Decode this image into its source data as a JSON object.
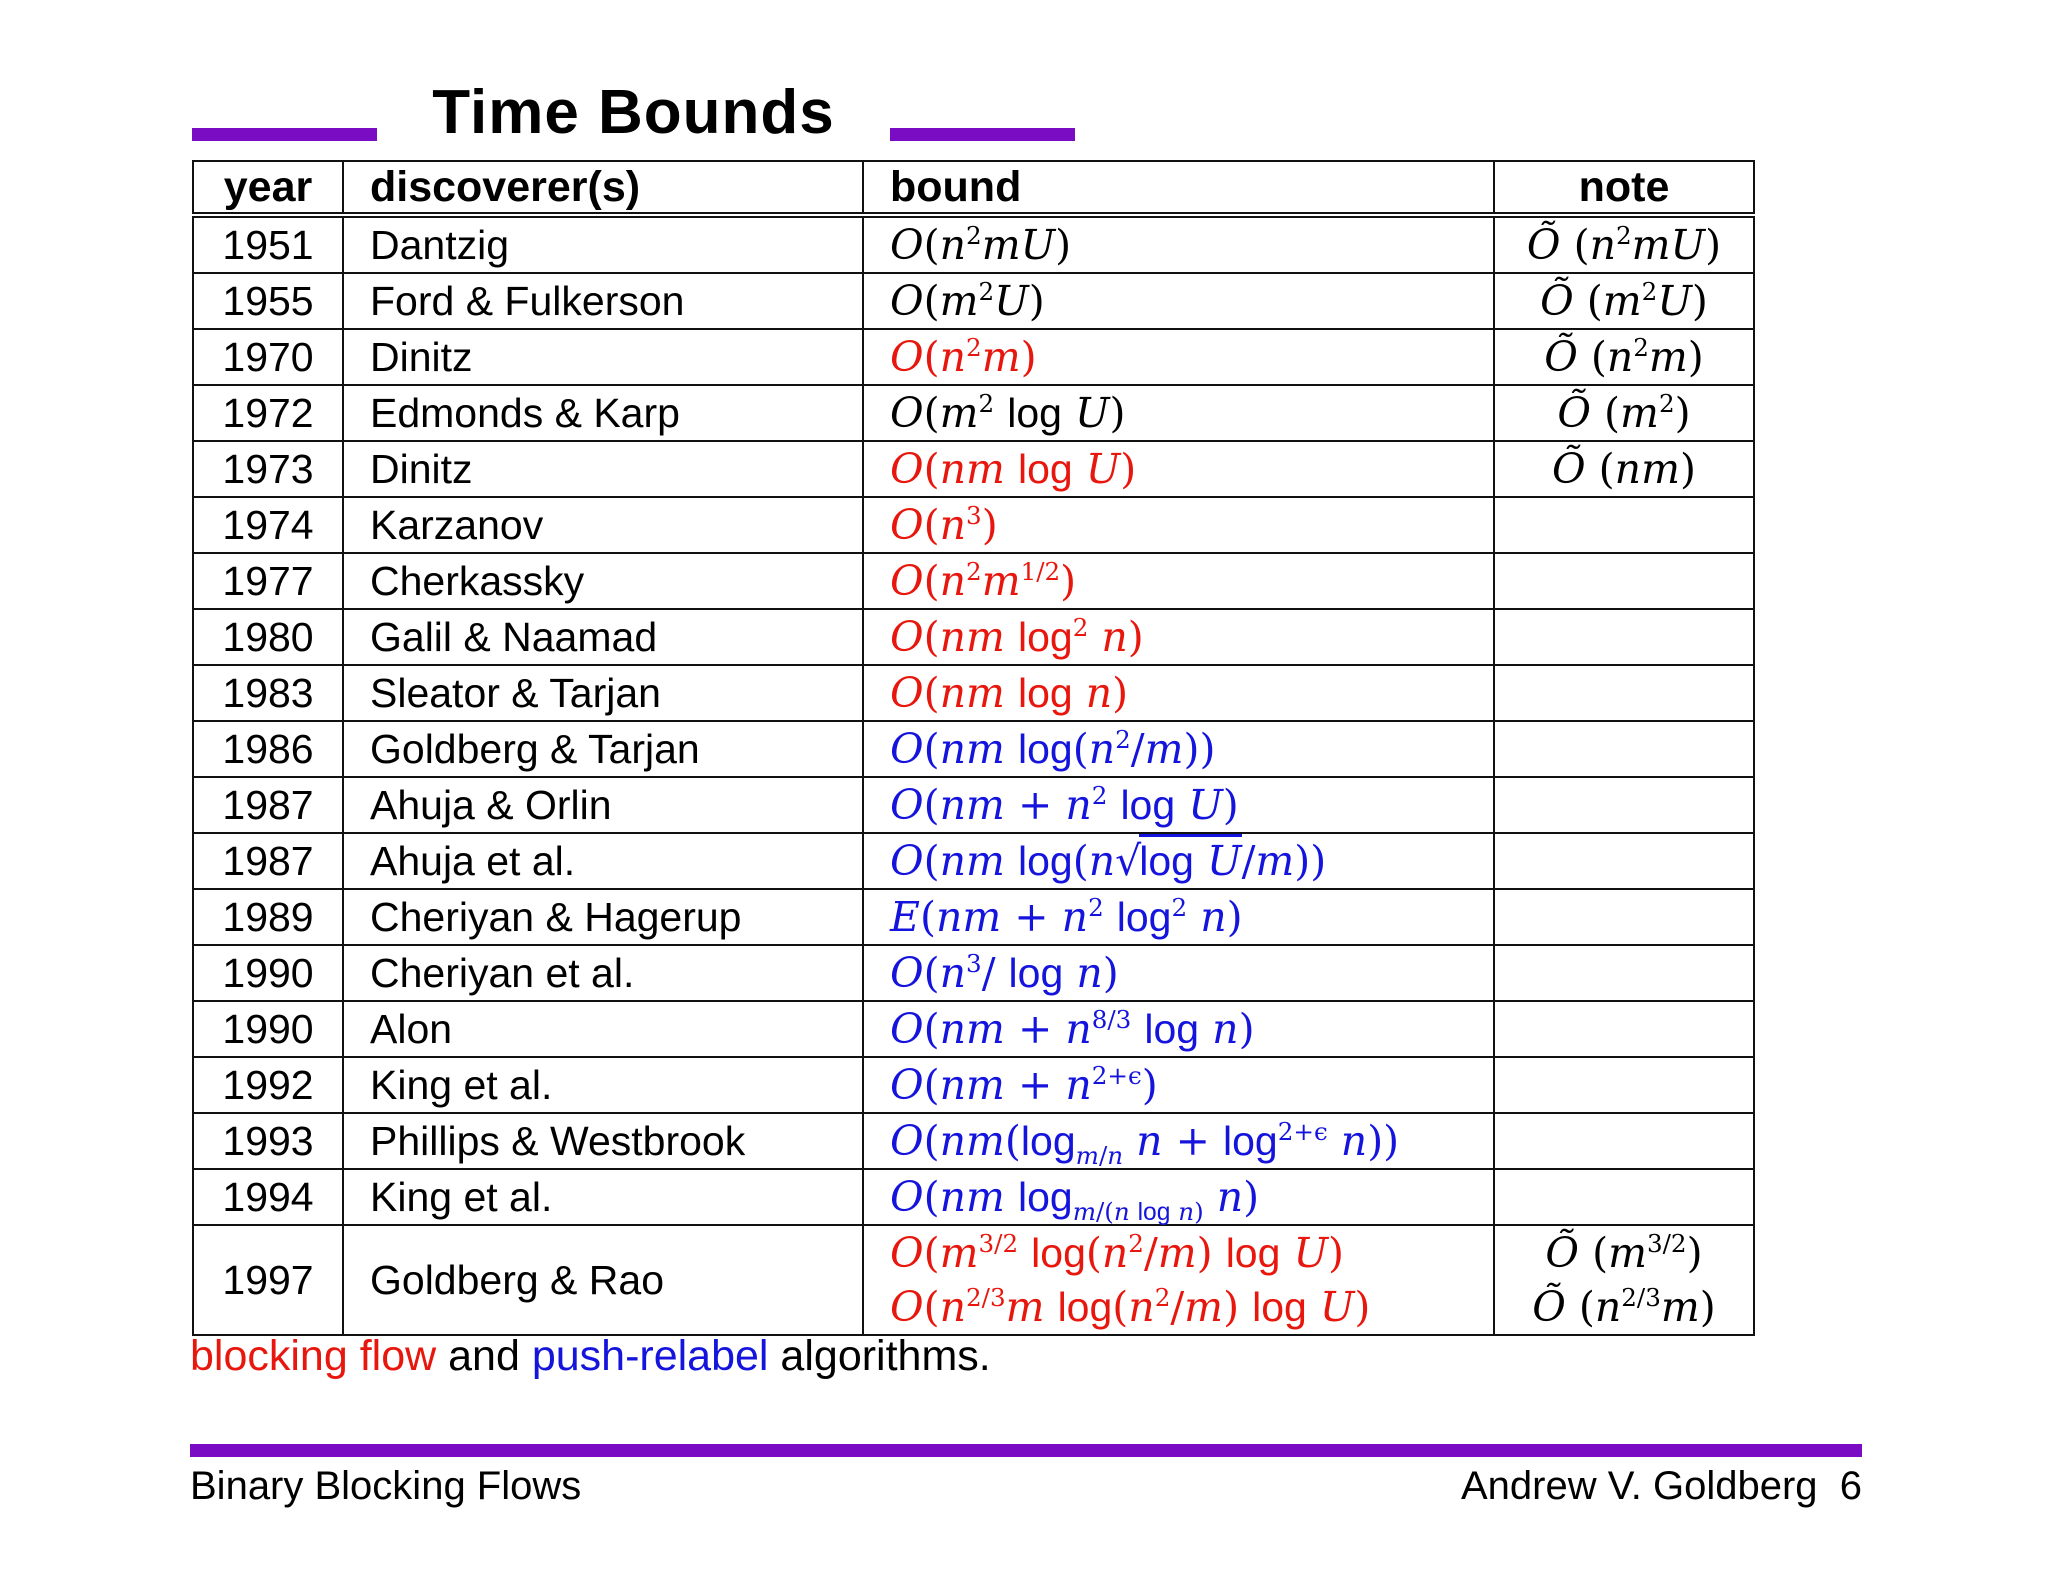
{
  "title": "Time Bounds",
  "colors": {
    "accent_purple": "#7a0cc4",
    "blocking_flow_red": "#e8170e",
    "push_relabel_blue": "#1414dd",
    "text_black": "#000000"
  },
  "table": {
    "headers": [
      "year",
      "discoverer(s)",
      "bound",
      "note"
    ],
    "rows": [
      {
        "year": "1951",
        "discoverers": "Dantzig",
        "color": "black",
        "bound_html": "<i>O</i>(<i>n</i><sup>2</sup><i>mU</i>)",
        "note_html": "<i>Õ</i> (<i>n</i><sup>2</sup><i>mU</i>)"
      },
      {
        "year": "1955",
        "discoverers": "Ford & Fulkerson",
        "color": "black",
        "bound_html": "<i>O</i>(<i>m</i><sup>2</sup><i>U</i>)",
        "note_html": "<i>Õ</i> (<i>m</i><sup>2</sup><i>U</i>)"
      },
      {
        "year": "1970",
        "discoverers": "Dinitz",
        "color": "red",
        "bound_html": "<i>O</i>(<i>n</i><sup>2</sup><i>m</i>)",
        "note_html": "<i>Õ</i> (<i>n</i><sup>2</sup><i>m</i>)"
      },
      {
        "year": "1972",
        "discoverers": "Edmonds & Karp",
        "color": "black",
        "bound_html": "<i>O</i>(<i>m</i><sup>2</sup> <span class='rm'>log</span> <i>U</i>)",
        "note_html": "<i>Õ</i> (<i>m</i><sup>2</sup>)"
      },
      {
        "year": "1973",
        "discoverers": "Dinitz",
        "color": "red",
        "bound_html": "<i>O</i>(<i>nm</i> <span class='rm'>log</span> <i>U</i>)",
        "note_html": "<i>Õ</i> (<i>nm</i>)"
      },
      {
        "year": "1974",
        "discoverers": "Karzanov",
        "color": "red",
        "bound_html": "<i>O</i>(<i>n</i><sup>3</sup>)",
        "note_html": ""
      },
      {
        "year": "1977",
        "discoverers": "Cherkassky",
        "color": "red",
        "bound_html": "<i>O</i>(<i>n</i><sup>2</sup><i>m</i><sup>1/2</sup>)",
        "note_html": ""
      },
      {
        "year": "1980",
        "discoverers": "Galil & Naamad",
        "color": "red",
        "bound_html": "<i>O</i>(<i>nm</i> <span class='rm'>log</span><sup>2</sup> <i>n</i>)",
        "note_html": ""
      },
      {
        "year": "1983",
        "discoverers": "Sleator & Tarjan",
        "color": "red",
        "bound_html": "<i>O</i>(<i>nm</i> <span class='rm'>log</span> <i>n</i>)",
        "note_html": ""
      },
      {
        "year": "1986",
        "discoverers": "Goldberg & Tarjan",
        "color": "blue",
        "bound_html": "<i>O</i>(<i>nm</i> <span class='rm'>log</span>(<i>n</i><sup>2</sup>/<i>m</i>))",
        "note_html": ""
      },
      {
        "year": "1987",
        "discoverers": "Ahuja & Orlin",
        "color": "blue",
        "bound_html": "<i>O</i>(<i>nm</i> + <i>n</i><sup>2</sup> <span class='rm'>log</span> <i>U</i>)",
        "note_html": ""
      },
      {
        "year": "1987",
        "discoverers": "Ahuja et al.",
        "color": "blue",
        "bound_html": "<i>O</i>(<i>nm</i> <span class='rm'>log</span>(<i>n</i><span class='sq'>√</span><span class='ov'><span class='rm'>log</span> <i>U</i></span>/<i>m</i>))",
        "note_html": ""
      },
      {
        "year": "1989",
        "discoverers": "Cheriyan & Hagerup",
        "color": "blue",
        "bound_html": "<i>E</i>(<i>nm</i> + <i>n</i><sup>2</sup> <span class='rm'>log</span><sup>2</sup> <i>n</i>)",
        "note_html": ""
      },
      {
        "year": "1990",
        "discoverers": "Cheriyan et al.",
        "color": "blue",
        "bound_html": "<i>O</i>(<i>n</i><sup>3</sup>/ <span class='rm'>log</span> <i>n</i>)",
        "note_html": ""
      },
      {
        "year": "1990",
        "discoverers": "Alon",
        "color": "blue",
        "bound_html": "<i>O</i>(<i>nm</i> + <i>n</i><sup>8/3</sup> <span class='rm'>log</span> <i>n</i>)",
        "note_html": ""
      },
      {
        "year": "1992",
        "discoverers": "King et al.",
        "color": "blue",
        "bound_html": "<i>O</i>(<i>nm</i> + <i>n</i><sup>2+ϵ</sup>)",
        "note_html": ""
      },
      {
        "year": "1993",
        "discoverers": "Phillips & Westbrook",
        "color": "blue",
        "bound_html": "<i>O</i>(<i>nm</i>(<span class='rm'>log</span><sub><i>m</i>/<i>n</i></sub> <i>n</i> + <span class='rm'>log</span><sup>2+ϵ</sup> <i>n</i>))",
        "note_html": ""
      },
      {
        "year": "1994",
        "discoverers": "King et al.",
        "color": "blue",
        "bound_html": "<i>O</i>(<i>nm</i> <span class='rm'>log</span><sub><i>m</i>/(<i>n</i> <span class='rm'>log</span> <i>n</i>)</sub> <i>n</i>)",
        "note_html": ""
      },
      {
        "year": "1997",
        "discoverers": "Goldberg & Rao",
        "color": "red",
        "bound_html": "<i>O</i>(<i>m</i><sup>3/2</sup> <span class='rm'>log</span>(<i>n</i><sup>2</sup>/<i>m</i>) <span class='rm'>log</span> <i>U</i>)<br><i>O</i>(<i>n</i><sup>2/3</sup><i>m</i> <span class='rm'>log</span>(<i>n</i><sup>2</sup>/<i>m</i>) <span class='rm'>log</span> <i>U</i>)",
        "note_html": "<i>Õ</i> (<i>m</i><sup>3/2</sup>)<br><i>Õ</i> (<i>n</i><sup>2/3</sup><i>m</i>)"
      }
    ]
  },
  "caption": {
    "parts": [
      "blocking flow",
      " and ",
      "push-relabel",
      " algorithms."
    ]
  },
  "footer": {
    "left": "Binary Blocking Flows",
    "right": "Andrew V. Goldberg  6"
  }
}
